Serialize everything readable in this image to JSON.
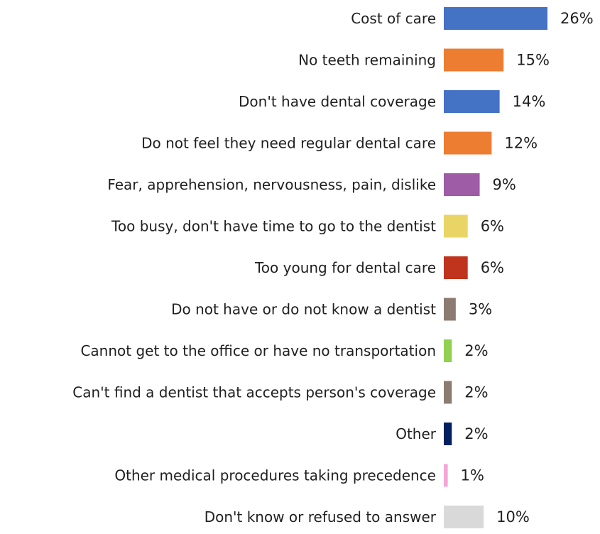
{
  "chart_data": {
    "type": "bar",
    "orientation": "horizontal",
    "categories": [
      "Cost of care",
      "No teeth remaining",
      "Don't have dental coverage",
      "Do not feel they need regular dental care",
      "Fear, apprehension, nervousness, pain, dislike",
      "Too busy, don't have time to go to the dentist",
      "Too young for dental care",
      "Do not have or do not know a dentist",
      "Cannot get to the office or have no transportation",
      "Can't find a dentist that accepts person's coverage",
      "Other",
      "Other medical procedures taking precedence",
      "Don't know or refused to answer"
    ],
    "values": [
      26,
      15,
      14,
      12,
      9,
      6,
      6,
      3,
      2,
      2,
      2,
      1,
      10
    ],
    "value_labels": [
      "26%",
      "15%",
      "14%",
      "12%",
      "9%",
      "6%",
      "6%",
      "3%",
      "2%",
      "2%",
      "2%",
      "1%",
      "10%"
    ],
    "colors": [
      "#4472c4",
      "#ed7d31",
      "#4472c4",
      "#ed7d31",
      "#9e5ba6",
      "#e9d565",
      "#c0341d",
      "#8c7b70",
      "#92d050",
      "#8c7b70",
      "#002060",
      "#f4a6d7",
      "#d9d9d9"
    ],
    "xlim": [
      0,
      26
    ],
    "title": "",
    "xlabel": "",
    "ylabel": "",
    "grid": false,
    "legend": "none"
  }
}
